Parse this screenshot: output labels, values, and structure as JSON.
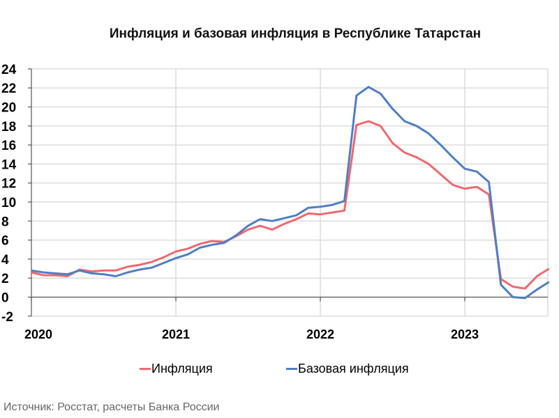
{
  "title": "Инфляция и базовая инфляция в Республике Татарстан",
  "legend": [
    {
      "label": "Инфляция",
      "color": "#f0686e"
    },
    {
      "label": "Базовая инфляция",
      "color": "#4f7ec4"
    }
  ],
  "source": "Источник: Росстат, расчеты Банка России",
  "chart_data": {
    "type": "line",
    "title": "Инфляция и базовая инфляция в Республике Татарстан",
    "xlabel": "",
    "ylabel": "",
    "ylim": [
      -2,
      24
    ],
    "yticks": [
      24,
      22,
      20,
      18,
      16,
      14,
      12,
      10,
      8,
      6,
      4,
      2,
      0,
      -2
    ],
    "xtick_labels": [
      "2020",
      "2021",
      "2022",
      "2023"
    ],
    "grid": true,
    "legend_position": "bottom",
    "x": [
      "2020-01",
      "2020-02",
      "2020-03",
      "2020-04",
      "2020-05",
      "2020-06",
      "2020-07",
      "2020-08",
      "2020-09",
      "2020-10",
      "2020-11",
      "2020-12",
      "2021-01",
      "2021-02",
      "2021-03",
      "2021-04",
      "2021-05",
      "2021-06",
      "2021-07",
      "2021-08",
      "2021-09",
      "2021-10",
      "2021-11",
      "2021-12",
      "2022-01",
      "2022-02",
      "2022-03",
      "2022-04",
      "2022-05",
      "2022-06",
      "2022-07",
      "2022-08",
      "2022-09",
      "2022-10",
      "2022-11",
      "2022-12",
      "2023-01",
      "2023-02",
      "2023-03",
      "2023-04",
      "2023-05",
      "2023-06",
      "2023-07",
      "2023-08"
    ],
    "series": [
      {
        "name": "Инфляция",
        "color": "#f0686e",
        "values": [
          2.6,
          2.3,
          2.3,
          2.2,
          2.9,
          2.7,
          2.8,
          2.8,
          3.2,
          3.4,
          3.7,
          4.2,
          4.8,
          5.1,
          5.6,
          5.9,
          5.8,
          6.4,
          7.1,
          7.5,
          7.1,
          7.7,
          8.2,
          8.8,
          8.7,
          8.9,
          9.1,
          18.1,
          18.5,
          18.0,
          16.2,
          15.2,
          14.7,
          14.0,
          12.9,
          11.8,
          11.4,
          11.6,
          10.8,
          1.9,
          1.1,
          0.9,
          2.2,
          3.0
        ]
      },
      {
        "name": "Базовая инфляция",
        "color": "#4f7ec4",
        "values": [
          2.8,
          2.6,
          2.5,
          2.4,
          2.8,
          2.5,
          2.4,
          2.2,
          2.6,
          2.9,
          3.1,
          3.6,
          4.1,
          4.5,
          5.2,
          5.5,
          5.7,
          6.5,
          7.5,
          8.2,
          8.0,
          8.3,
          8.6,
          9.4,
          9.5,
          9.7,
          10.1,
          21.2,
          22.1,
          21.4,
          19.8,
          18.5,
          18.0,
          17.2,
          16.0,
          14.7,
          13.5,
          13.2,
          12.1,
          1.3,
          0.0,
          -0.1,
          0.8,
          1.6
        ]
      }
    ]
  }
}
